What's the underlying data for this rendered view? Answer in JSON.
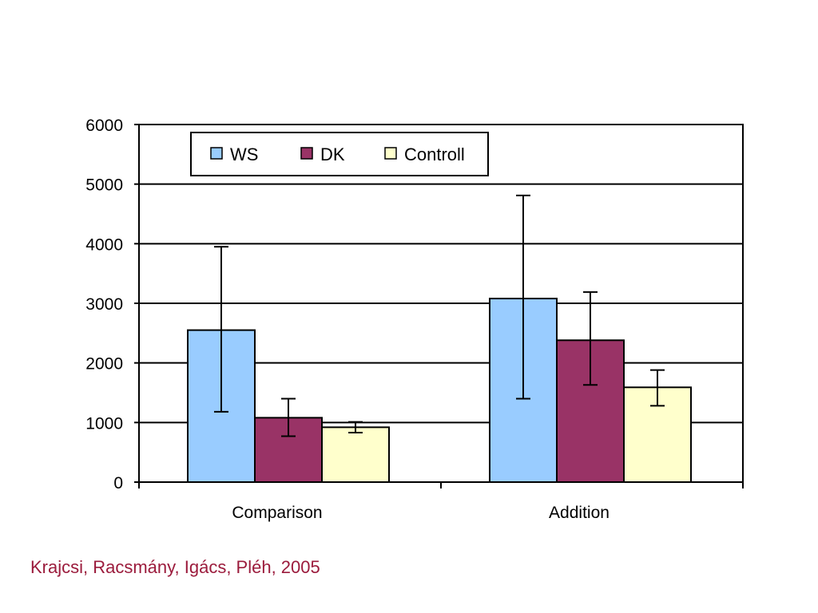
{
  "chart_data": {
    "type": "bar",
    "title": "",
    "xlabel": "",
    "ylabel": "",
    "categories": [
      "Comparison",
      "Addition"
    ],
    "series": [
      {
        "name": "WS",
        "values": [
          2550,
          3080
        ],
        "error_low": [
          1180,
          1400
        ],
        "error_high": [
          3950,
          4810
        ],
        "color": "#99ccff"
      },
      {
        "name": "DK",
        "values": [
          1080,
          2380
        ],
        "error_low": [
          770,
          1630
        ],
        "error_high": [
          1400,
          3190
        ],
        "color": "#993366"
      },
      {
        "name": "Controll",
        "values": [
          920,
          1590
        ],
        "error_low": [
          830,
          1280
        ],
        "error_high": [
          1010,
          1880
        ],
        "color": "#ffffcc"
      }
    ],
    "ylim": [
      0,
      6000
    ],
    "yticks": [
      "0",
      "1000",
      "2000",
      "3000",
      "4000",
      "5000",
      "6000"
    ],
    "ytick_values": [
      0,
      1000,
      2000,
      3000,
      4000,
      5000,
      6000
    ],
    "grid": true,
    "legend_position": "top-left inside"
  },
  "citation": {
    "text": "Krajcsi, Racsmány, Igács, Pléh, 2005",
    "color": "#9b1b3c"
  }
}
